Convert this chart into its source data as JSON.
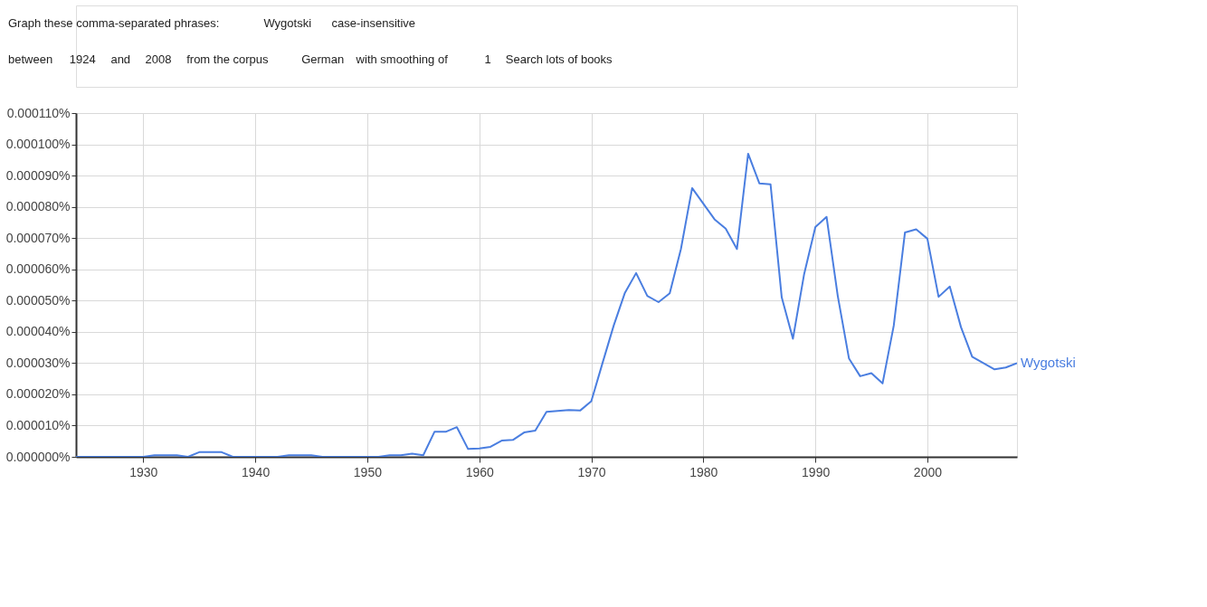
{
  "chart_data": {
    "type": "line",
    "x": [
      1924,
      1925,
      1926,
      1927,
      1928,
      1929,
      1930,
      1931,
      1932,
      1933,
      1934,
      1935,
      1936,
      1937,
      1938,
      1939,
      1940,
      1941,
      1942,
      1943,
      1944,
      1945,
      1946,
      1947,
      1948,
      1949,
      1950,
      1951,
      1952,
      1953,
      1954,
      1955,
      1956,
      1957,
      1958,
      1959,
      1960,
      1961,
      1962,
      1963,
      1964,
      1965,
      1966,
      1967,
      1968,
      1969,
      1970,
      1971,
      1972,
      1973,
      1974,
      1975,
      1976,
      1977,
      1978,
      1979,
      1980,
      1981,
      1982,
      1983,
      1984,
      1985,
      1986,
      1987,
      1988,
      1989,
      1990,
      1991,
      1992,
      1993,
      1994,
      1995,
      1996,
      1997,
      1998,
      1999,
      2000,
      2001,
      2002,
      2003,
      2004,
      2005,
      2006,
      2007,
      2008
    ],
    "series": [
      {
        "name": "Wygotski",
        "color": "#4a7ee0",
        "values": [
          0,
          0,
          0,
          0,
          0,
          0,
          0,
          5e-07,
          5e-07,
          5e-07,
          0,
          1.5e-06,
          1.5e-06,
          1.5e-06,
          0,
          0,
          0,
          0,
          0,
          5e-07,
          5e-07,
          5e-07,
          0,
          0,
          0,
          0,
          0,
          0,
          5e-07,
          5e-07,
          1e-06,
          5e-07,
          8e-06,
          8e-06,
          9.5e-06,
          2.5e-06,
          2.7e-06,
          3.2e-06,
          5.2e-06,
          5.4e-06,
          7.8e-06,
          8.4e-06,
          1.44e-05,
          1.47e-05,
          1.5e-05,
          1.48e-05,
          1.78e-05,
          3e-05,
          4.2e-05,
          5.25e-05,
          5.88e-05,
          5.15e-05,
          4.95e-05,
          5.23e-05,
          6.65e-05,
          8.6e-05,
          8.1e-05,
          7.6e-05,
          7.3e-05,
          6.65e-05,
          9.7e-05,
          8.75e-05,
          8.72e-05,
          5.1e-05,
          3.78e-05,
          5.85e-05,
          7.35e-05,
          7.68e-05,
          5.15e-05,
          3.15e-05,
          2.58e-05,
          2.68e-05,
          2.35e-05,
          4.2e-05,
          7.18e-05,
          7.28e-05,
          6.98e-05,
          5.12e-05,
          5.45e-05,
          4.15e-05,
          3.2e-05,
          3e-05,
          2.8e-05,
          2.86e-05,
          3e-05
        ]
      }
    ],
    "xlim": [
      1924,
      2008
    ],
    "xticks": [
      1930,
      1940,
      1950,
      1960,
      1970,
      1980,
      1990,
      2000
    ],
    "ylim": [
      0,
      0.00011
    ],
    "yticks": [
      {
        "value": 0,
        "label": "0.000000%"
      },
      {
        "value": 1e-05,
        "label": "0.000010%"
      },
      {
        "value": 2e-05,
        "label": "0.000020%"
      },
      {
        "value": 3e-05,
        "label": "0.000030%"
      },
      {
        "value": 4e-05,
        "label": "0.000040%"
      },
      {
        "value": 5e-05,
        "label": "0.000050%"
      },
      {
        "value": 6e-05,
        "label": "0.000060%"
      },
      {
        "value": 7e-05,
        "label": "0.000070%"
      },
      {
        "value": 8e-05,
        "label": "0.000080%"
      },
      {
        "value": 9e-05,
        "label": "0.000090%"
      },
      {
        "value": 0.0001,
        "label": "0.000100%"
      },
      {
        "value": 0.00011,
        "label": "0.000110%"
      }
    ],
    "grid": true,
    "marker": "none",
    "line_style": "solid",
    "annotations": [
      "Graph these comma-separated phrases:",
      "Wygotski",
      "case-insensitive",
      "between",
      "1924",
      "and",
      "2008",
      "from the corpus",
      "German",
      "with smoothing of",
      "1",
      "Search lots of books"
    ]
  }
}
